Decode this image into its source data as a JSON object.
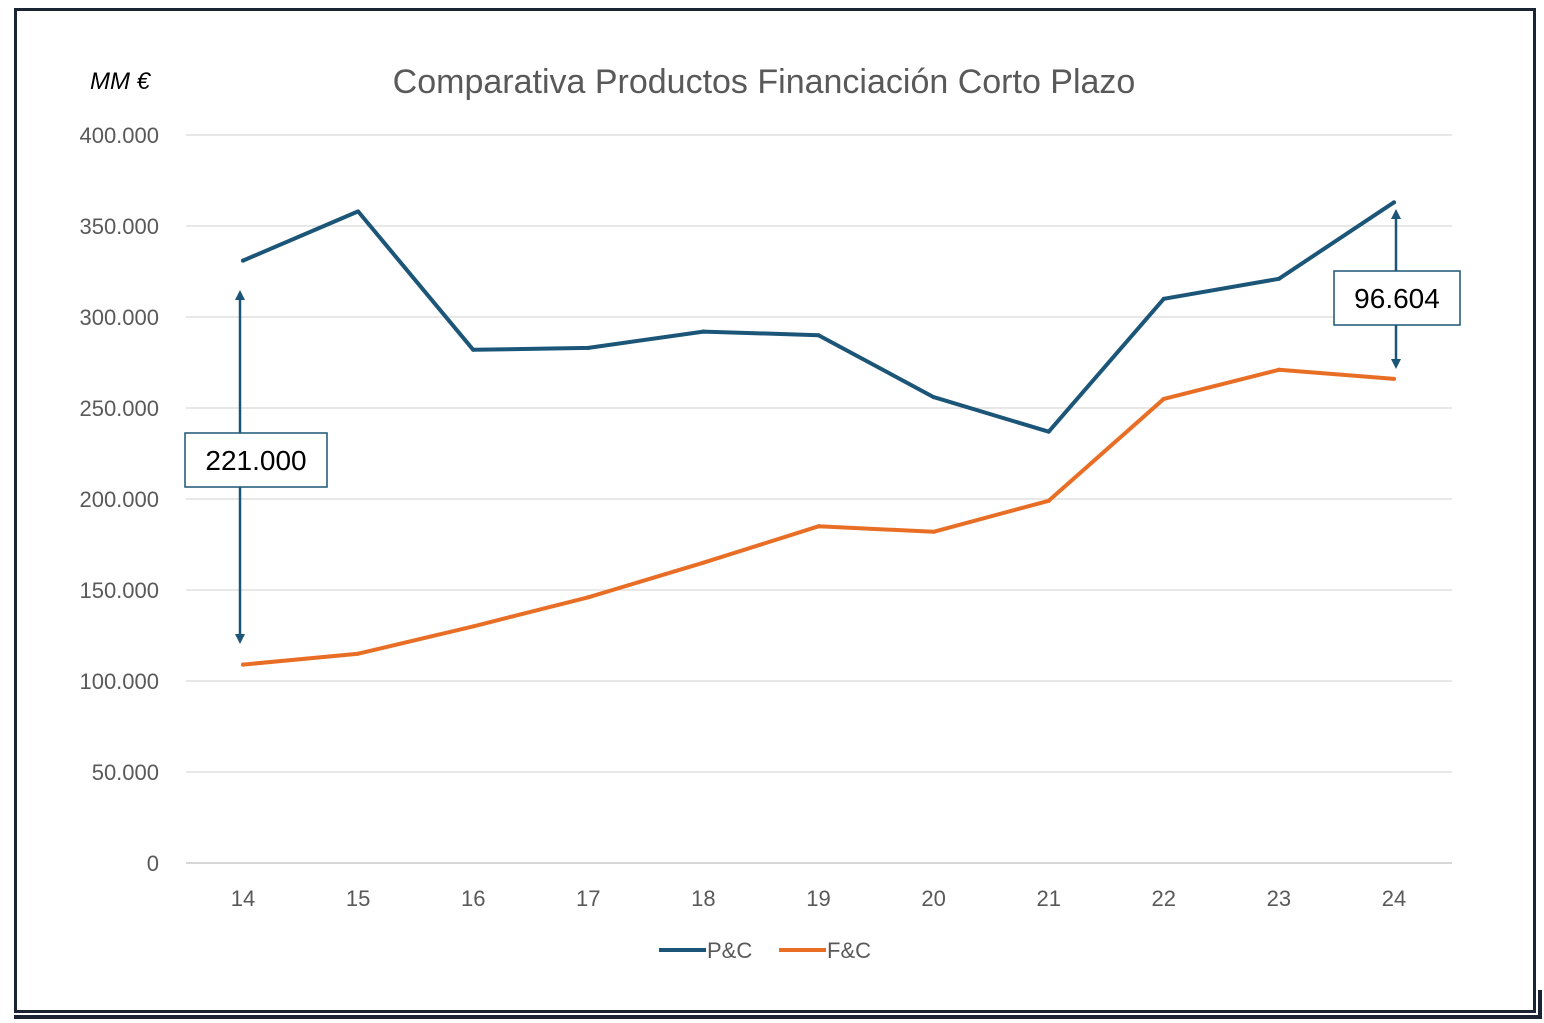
{
  "chart_data": {
    "type": "line",
    "title": "Comparativa Productos Financiación Corto Plazo",
    "unit_label": "MM €",
    "categories": [
      "14",
      "15",
      "16",
      "17",
      "18",
      "19",
      "20",
      "21",
      "22",
      "23",
      "24"
    ],
    "series": [
      {
        "name": "P&C",
        "color": "#1b5577",
        "values": [
          331000,
          358000,
          282000,
          283000,
          292000,
          290000,
          256000,
          237000,
          310000,
          321000,
          363000
        ]
      },
      {
        "name": "F&C",
        "color": "#e96e25",
        "values": [
          109000,
          115000,
          130000,
          146000,
          165000,
          185000,
          182000,
          199000,
          255000,
          271000,
          266000
        ]
      }
    ],
    "ylim": [
      0,
      400000
    ],
    "yticks": [
      "0",
      "50.000",
      "100.000",
      "150.000",
      "200.000",
      "250.000",
      "300.000",
      "350.000",
      "400.000"
    ],
    "grid": true,
    "legend": "bottom",
    "annotations": [
      {
        "text": "221.000",
        "category": "14",
        "from": 331000,
        "to": 109000
      },
      {
        "text": "96.604",
        "category": "24",
        "from": 363000,
        "to": 266000
      }
    ]
  }
}
